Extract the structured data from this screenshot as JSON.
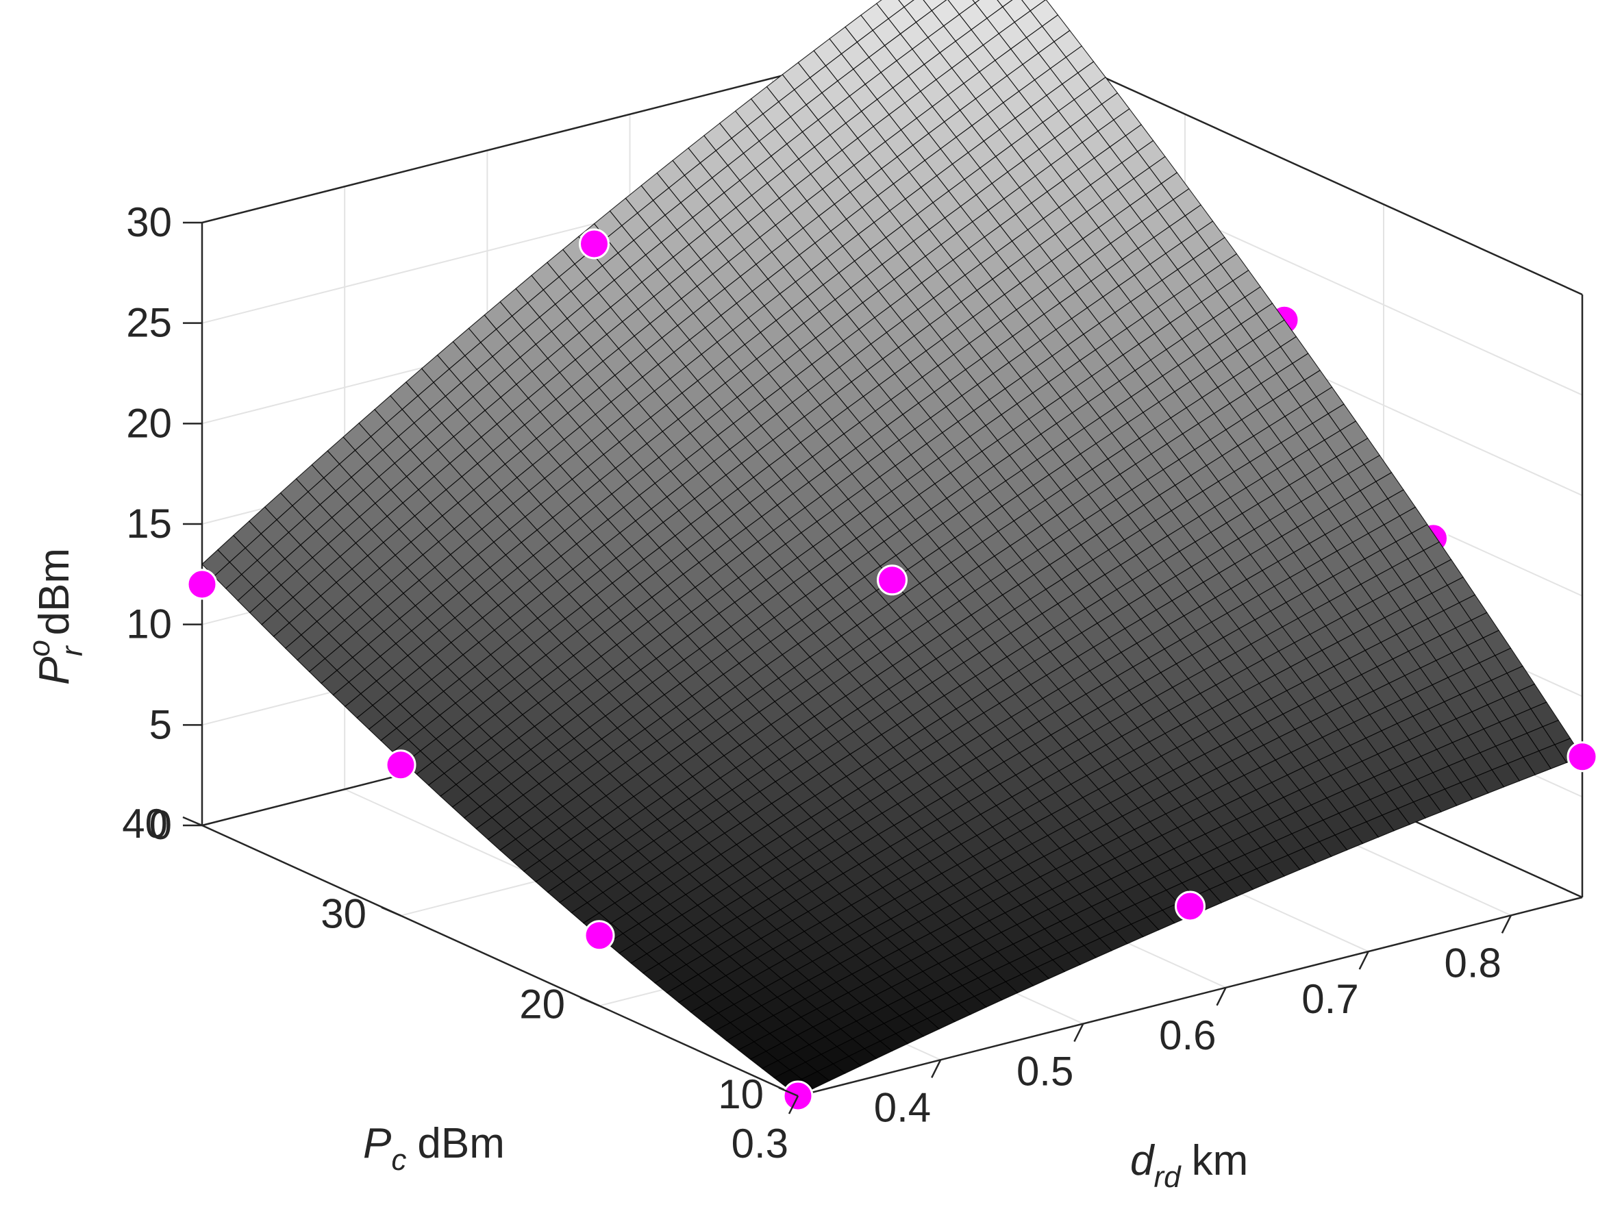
{
  "chart_data": {
    "type": "surface3d",
    "xlabel": {
      "symbol": "d",
      "subscript": "rd",
      "unit": "km"
    },
    "ylabel": {
      "symbol": "P",
      "subscript": "c",
      "unit": "dBm"
    },
    "zlabel": {
      "symbol": "P",
      "superscript": "o",
      "subscript": "r",
      "unit": "dBm"
    },
    "xlim": [
      0.3,
      0.85
    ],
    "ylim": [
      10,
      40
    ],
    "zlim": [
      0,
      30
    ],
    "xticks": [
      "0.3",
      "0.4",
      "0.5",
      "0.6",
      "0.7",
      "0.8"
    ],
    "yticks": [
      "10",
      "20",
      "30",
      "40"
    ],
    "zticks": [
      "0",
      "5",
      "10",
      "15",
      "20",
      "25",
      "30"
    ],
    "grid": true,
    "surface": {
      "x_nodes": [
        0.3,
        0.575,
        0.85
      ],
      "y_nodes": [
        10,
        25,
        40
      ],
      "z_grid": [
        [
          0.0,
          4.0,
          7.0
        ],
        [
          5.5,
          14.0,
          22.0
        ],
        [
          13.0,
          25.0,
          35.0
        ]
      ],
      "colormap": "gray",
      "color_range": [
        0,
        35
      ]
    },
    "points": [
      {
        "x": 0.3,
        "y": 10,
        "z": 0.0
      },
      {
        "x": 0.3,
        "y": 20,
        "z": 3.5
      },
      {
        "x": 0.3,
        "y": 30,
        "z": 7.5
      },
      {
        "x": 0.3,
        "y": 40,
        "z": 12.0
      },
      {
        "x": 0.575,
        "y": 10,
        "z": 4.5
      },
      {
        "x": 0.575,
        "y": 25,
        "z": 14.0
      },
      {
        "x": 0.85,
        "y": 10,
        "z": 7.0
      },
      {
        "x": 0.3,
        "y": 40,
        "z": 12.0
      },
      {
        "x": 0.575,
        "y": 40,
        "z": 24.0
      },
      {
        "x": 0.85,
        "y": 40,
        "z": 35.0
      },
      {
        "x": 0.85,
        "y": 25,
        "z": 22.0
      },
      {
        "x": 0.85,
        "y": 17.5,
        "z": 14.5
      }
    ],
    "colors": {
      "marker": "#ff00ff",
      "marker_edge": "#ffffff",
      "axis": "#262626",
      "grid": "#e3e3e3",
      "mesh_edge": "#000000"
    }
  }
}
